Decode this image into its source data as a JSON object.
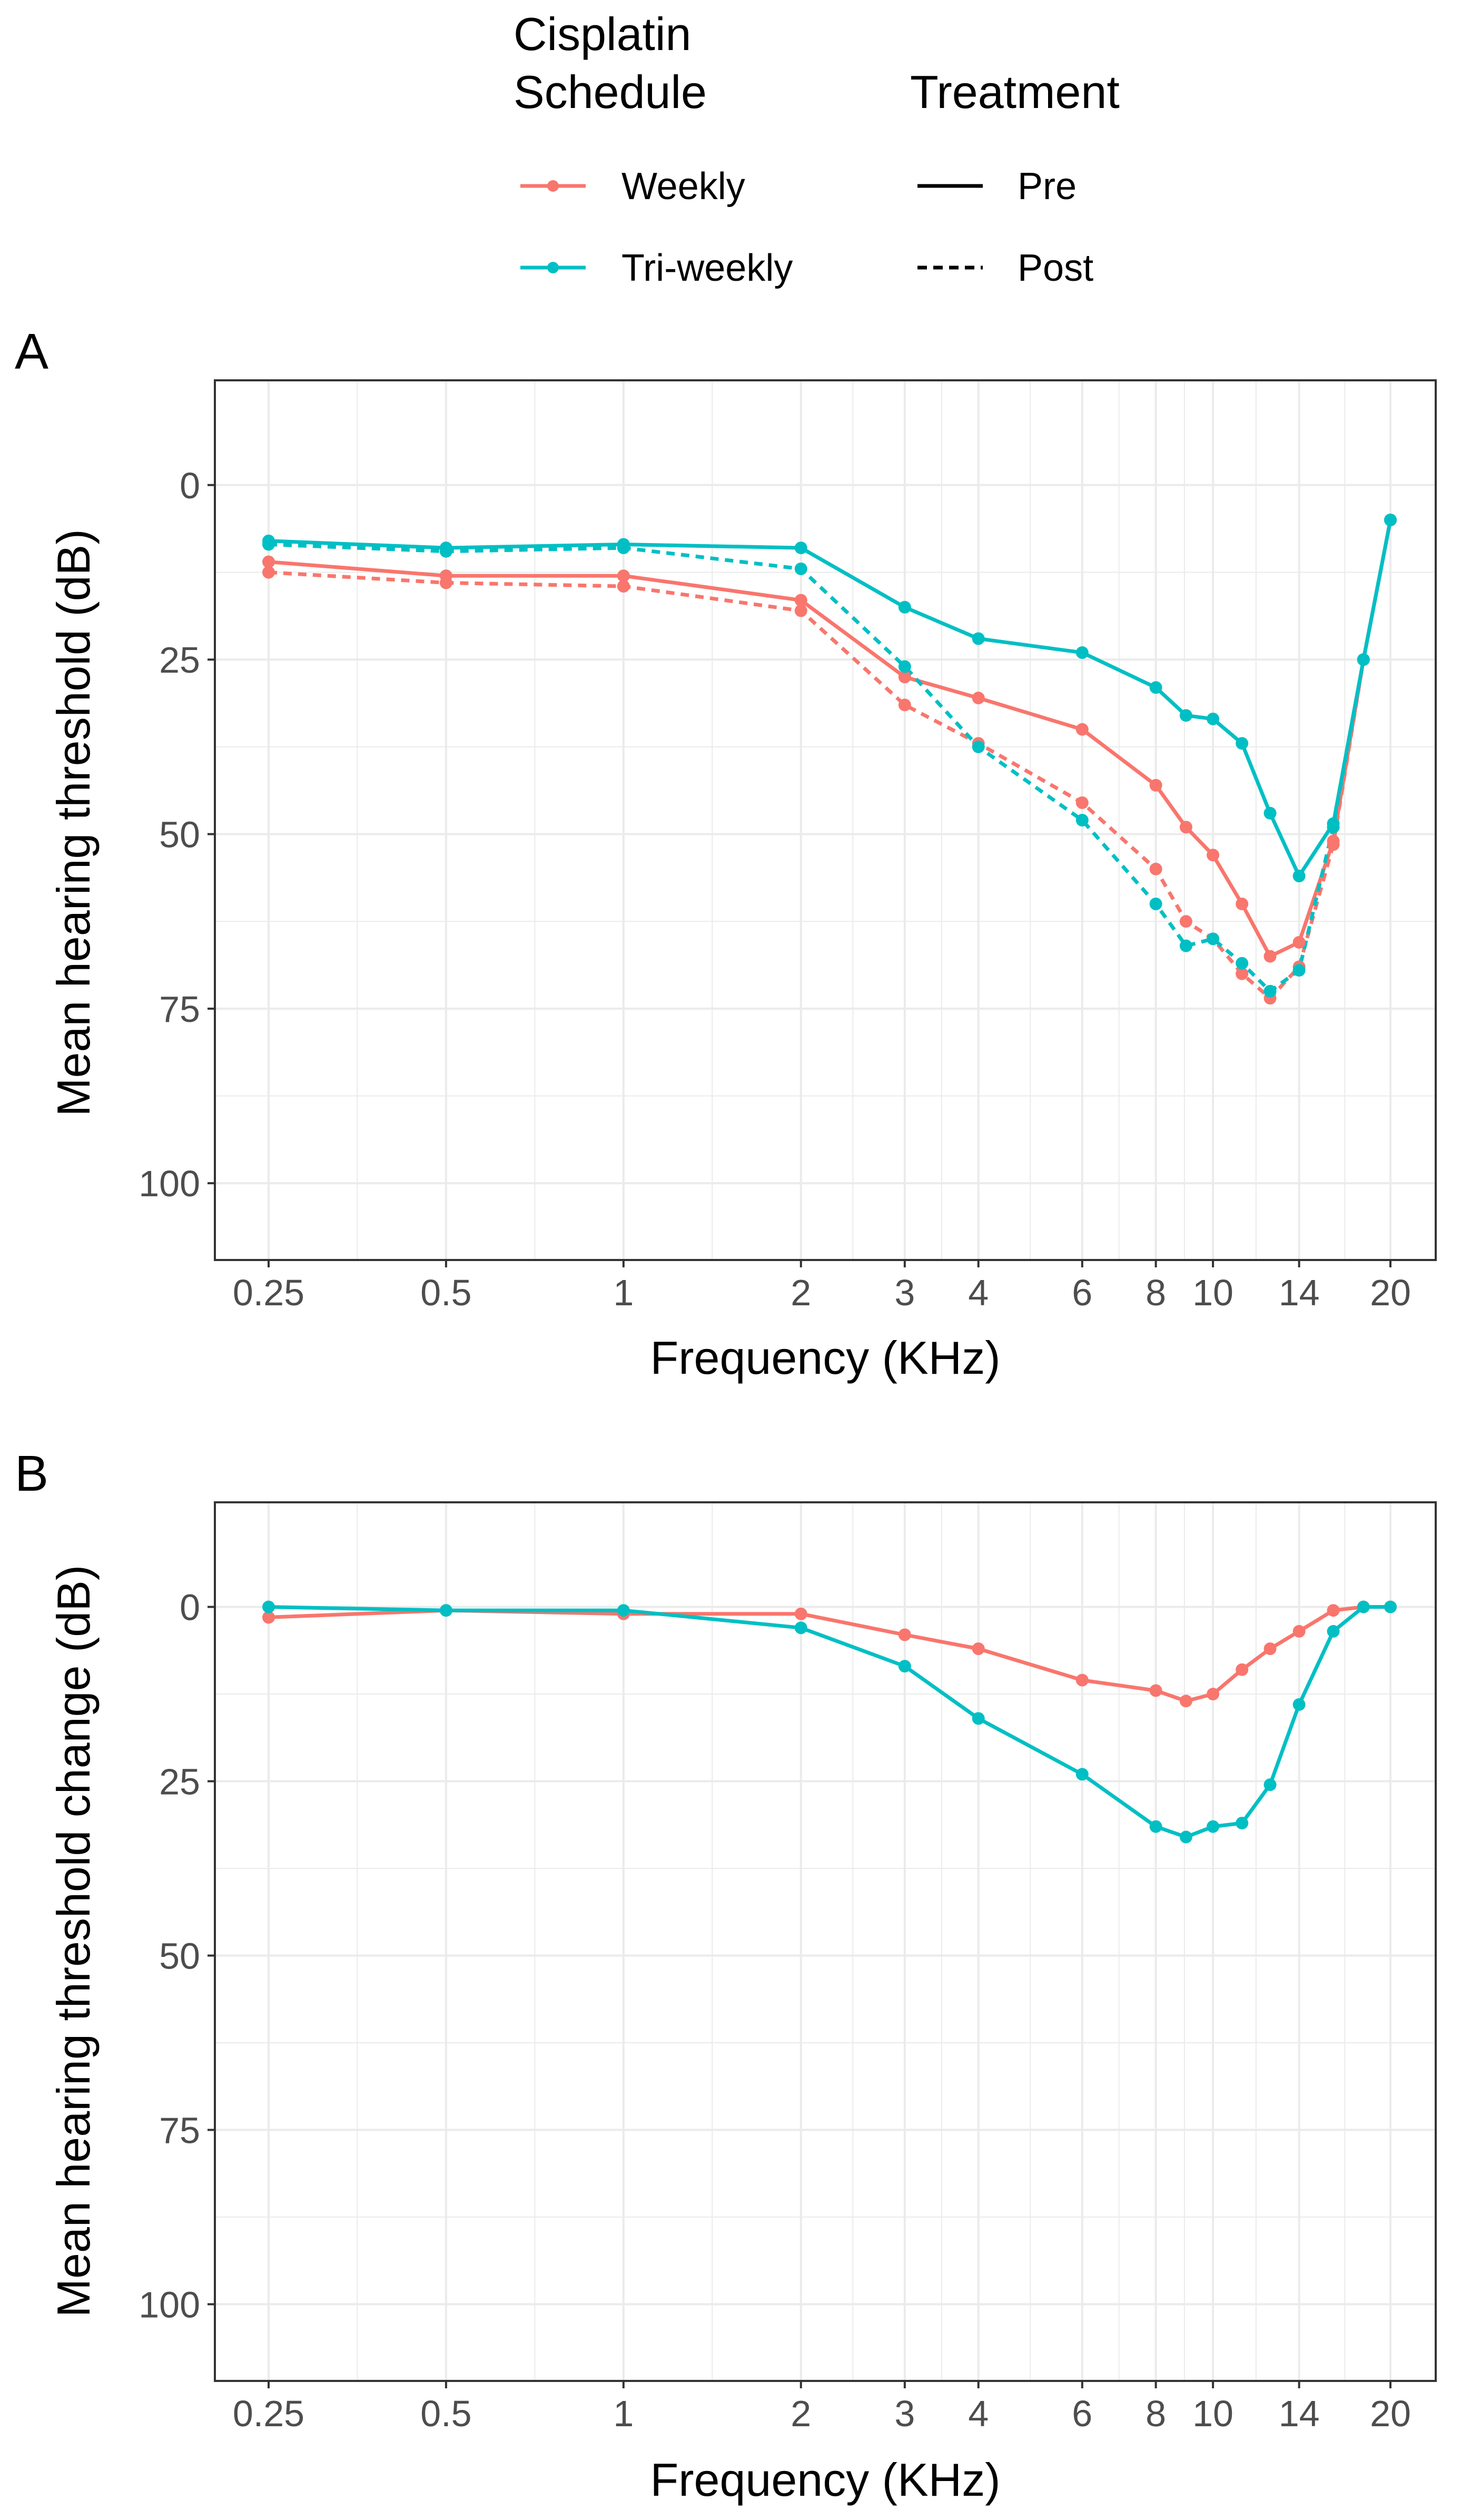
{
  "legend": {
    "colour_title_line1": "Cisplatin",
    "colour_title_line2": "Schedule",
    "colour_items": [
      {
        "label": "Weekly",
        "color": "#F8766D"
      },
      {
        "label": "Tri-weekly",
        "color": "#00BFC4"
      }
    ],
    "linetype_title": "Treatment",
    "linetype_items": [
      {
        "label": "Pre",
        "dash": "solid"
      },
      {
        "label": "Post",
        "dash": "dashed"
      }
    ]
  },
  "chart_data": [
    {
      "panel": "A",
      "type": "line",
      "xlabel": "Frequency (KHz)",
      "ylabel": "Mean hearing threshold (dB)",
      "x_scale": "log",
      "xlim": [
        0.25,
        20
      ],
      "ylim": [
        -15,
        111
      ],
      "y_reversed": true,
      "x_ticks": [
        0.25,
        0.5,
        1,
        2,
        3,
        4,
        6,
        8,
        10,
        14,
        20
      ],
      "x_tick_labels": [
        "0.25",
        "0.5",
        "1",
        "2",
        "3",
        "4",
        "6",
        "8",
        "10",
        "14",
        "20"
      ],
      "y_ticks": [
        0,
        25,
        50,
        75,
        100
      ],
      "y_tick_labels": [
        "0",
        "25",
        "50",
        "75",
        "100"
      ],
      "x": [
        0.25,
        0.5,
        1,
        2,
        3,
        4,
        6,
        8,
        9,
        10,
        11.2,
        12.5,
        14,
        16,
        18,
        20
      ],
      "series": [
        {
          "name": "Weekly Pre",
          "schedule": "Weekly",
          "treatment": "Pre",
          "values": [
            11,
            13,
            13,
            16.5,
            27.5,
            30.5,
            35,
            43,
            49,
            53,
            60,
            67.5,
            65.5,
            51,
            25,
            5
          ]
        },
        {
          "name": "Weekly Post",
          "schedule": "Weekly",
          "treatment": "Post",
          "values": [
            12.5,
            14,
            14.5,
            18,
            31.5,
            37,
            45.5,
            55,
            62.5,
            65,
            70,
            73.5,
            69,
            51.5,
            25,
            5
          ]
        },
        {
          "name": "Tri-weekly Pre",
          "schedule": "Tri-weekly",
          "treatment": "Pre",
          "values": [
            8,
            9,
            8.5,
            9,
            17.5,
            22,
            24,
            29,
            33,
            33.5,
            37,
            47,
            56,
            48.5,
            25,
            5
          ]
        },
        {
          "name": "Tri-weekly Post",
          "schedule": "Tri-weekly",
          "treatment": "Post",
          "values": [
            8.5,
            9.5,
            9,
            12,
            26,
            37.5,
            48,
            60,
            66,
            65,
            68.5,
            72.5,
            69.5,
            49,
            25,
            5
          ]
        }
      ]
    },
    {
      "panel": "B",
      "type": "line",
      "xlabel": "Frequency (KHz)",
      "ylabel": "Mean hearing threshold change (dB)",
      "x_scale": "log",
      "xlim": [
        0.25,
        20
      ],
      "ylim": [
        -15,
        111
      ],
      "y_reversed": true,
      "x_ticks": [
        0.25,
        0.5,
        1,
        2,
        3,
        4,
        6,
        8,
        10,
        14,
        20
      ],
      "x_tick_labels": [
        "0.25",
        "0.5",
        "1",
        "2",
        "3",
        "4",
        "6",
        "8",
        "10",
        "14",
        "20"
      ],
      "y_ticks": [
        0,
        25,
        50,
        75,
        100
      ],
      "y_tick_labels": [
        "0",
        "25",
        "50",
        "75",
        "100"
      ],
      "x": [
        0.25,
        0.5,
        1,
        2,
        3,
        4,
        6,
        8,
        9,
        10,
        11.2,
        12.5,
        14,
        16,
        18,
        20
      ],
      "series": [
        {
          "name": "Weekly",
          "schedule": "Weekly",
          "treatment": "Pre",
          "values": [
            1.5,
            0.5,
            1,
            1,
            4,
            6,
            10.5,
            12,
            13.5,
            12.5,
            9,
            6,
            3.5,
            0.5,
            0,
            0
          ]
        },
        {
          "name": "Tri-weekly",
          "schedule": "Tri-weekly",
          "treatment": "Pre",
          "values": [
            0,
            0.5,
            0.5,
            3,
            8.5,
            16,
            24,
            31.5,
            33,
            31.5,
            31,
            25.5,
            14,
            3.5,
            0,
            0
          ]
        }
      ]
    }
  ]
}
